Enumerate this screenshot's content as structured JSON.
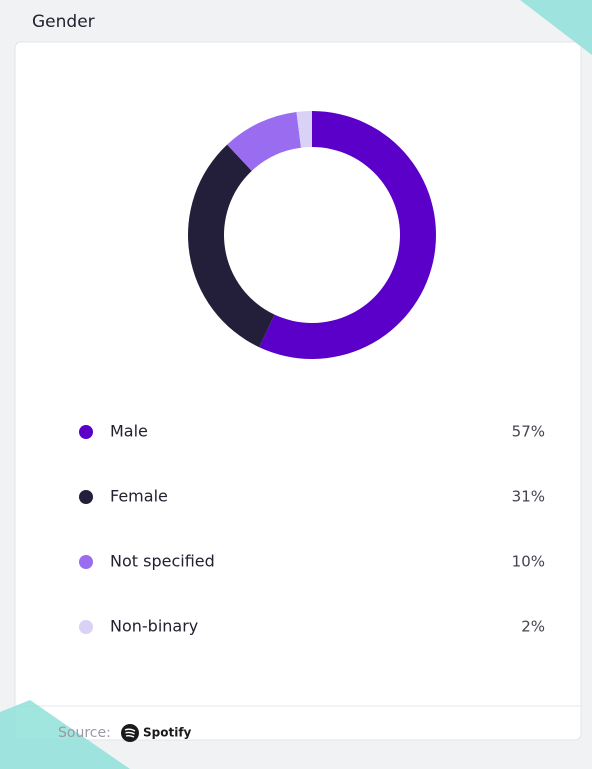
{
  "chart_data": {
    "type": "pie",
    "title": "Gender",
    "categories": [
      "Male",
      "Female",
      "Not specified",
      "Non-binary"
    ],
    "values": [
      57,
      31,
      10,
      2
    ],
    "value_labels": [
      "57%",
      "31%",
      "10%",
      "2%"
    ],
    "colors": [
      "#5a00c8",
      "#231f3a",
      "#9a6cf0",
      "#d9d1f6"
    ],
    "donut": true,
    "source_label": "Source:",
    "source_brand": "Spotify"
  }
}
